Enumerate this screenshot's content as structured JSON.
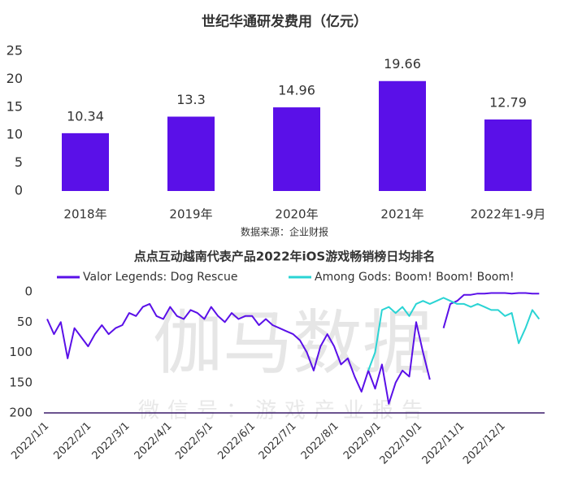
{
  "chart_data": [
    {
      "type": "bar",
      "title": "世纪华通研发费用（亿元）",
      "categories": [
        "2018年",
        "2019年",
        "2020年",
        "2021年",
        "2022年1-9月"
      ],
      "values": [
        10.34,
        13.3,
        14.96,
        19.66,
        12.79
      ],
      "color": "#5a10e8",
      "ylim": [
        0,
        25
      ],
      "yticks": [
        0,
        5,
        10,
        15,
        20,
        25
      ],
      "grid": false,
      "source": "数据来源：企业财报"
    },
    {
      "type": "line",
      "title": "点点互动越南代表产品2022年iOS游戏畅销榜日均排名",
      "x": [
        "2022/1/1",
        "2022/1/6",
        "2022/1/11",
        "2022/1/16",
        "2022/1/21",
        "2022/1/26",
        "2022/1/31",
        "2022/2/5",
        "2022/2/10",
        "2022/2/15",
        "2022/2/20",
        "2022/2/25",
        "2022/3/2",
        "2022/3/7",
        "2022/3/12",
        "2022/3/17",
        "2022/3/22",
        "2022/3/27",
        "2022/4/1",
        "2022/4/6",
        "2022/4/11",
        "2022/4/16",
        "2022/4/21",
        "2022/4/26",
        "2022/5/1",
        "2022/5/6",
        "2022/5/11",
        "2022/5/16",
        "2022/5/21",
        "2022/5/26",
        "2022/5/31",
        "2022/6/5",
        "2022/6/10",
        "2022/6/15",
        "2022/6/20",
        "2022/6/25",
        "2022/6/30",
        "2022/7/5",
        "2022/7/10",
        "2022/7/15",
        "2022/7/20",
        "2022/7/25",
        "2022/7/30",
        "2022/8/4",
        "2022/8/9",
        "2022/8/14",
        "2022/8/19",
        "2022/8/24",
        "2022/8/29",
        "2022/9/3",
        "2022/9/8",
        "2022/9/13",
        "2022/9/18",
        "2022/9/23",
        "2022/9/28",
        "2022/10/3",
        "2022/10/8",
        "2022/10/13",
        "2022/10/18",
        "2022/10/23",
        "2022/10/28",
        "2022/11/2",
        "2022/11/7",
        "2022/11/12",
        "2022/11/17",
        "2022/11/22",
        "2022/11/27",
        "2022/12/2",
        "2022/12/7",
        "2022/12/12",
        "2022/12/17",
        "2022/12/22",
        "2022/12/27"
      ],
      "series": [
        {
          "name": "Valor Legends: Dog Rescue",
          "color": "#5a10e8",
          "values": [
            45,
            70,
            50,
            110,
            60,
            75,
            90,
            70,
            55,
            70,
            60,
            55,
            35,
            40,
            25,
            20,
            40,
            45,
            25,
            40,
            45,
            30,
            35,
            45,
            25,
            40,
            50,
            35,
            45,
            40,
            40,
            55,
            45,
            55,
            60,
            65,
            70,
            80,
            100,
            130,
            90,
            70,
            90,
            120,
            110,
            140,
            165,
            130,
            160,
            120,
            185,
            150,
            130,
            140,
            50,
            100,
            145,
            null,
            60,
            20,
            15,
            5,
            5,
            3,
            3,
            2,
            2,
            2,
            3,
            2,
            2,
            3,
            3
          ]
        },
        {
          "name": "Among Gods: Boom! Boom! Boom!",
          "color": "#2ad4d4",
          "values": [
            null,
            null,
            null,
            null,
            null,
            null,
            null,
            null,
            null,
            null,
            null,
            null,
            null,
            null,
            null,
            null,
            null,
            null,
            null,
            null,
            null,
            null,
            null,
            null,
            null,
            null,
            null,
            null,
            null,
            null,
            null,
            null,
            null,
            null,
            null,
            null,
            null,
            null,
            null,
            null,
            null,
            null,
            null,
            null,
            null,
            null,
            null,
            130,
            100,
            30,
            25,
            35,
            25,
            40,
            20,
            15,
            20,
            15,
            10,
            15,
            20,
            20,
            25,
            20,
            25,
            30,
            30,
            40,
            35,
            85,
            60,
            30,
            45
          ]
        }
      ],
      "xlim": [
        "2022/1/1",
        "2022/12/31"
      ],
      "xticks": [
        "2022/1/1",
        "2022/2/1",
        "2022/3/1",
        "2022/4/1",
        "2022/5/1",
        "2022/6/1",
        "2022/7/1",
        "2022/8/1",
        "2022/9/1",
        "2022/10/1",
        "2022/11/1",
        "2022/12/1"
      ],
      "ylim": [
        0,
        200
      ],
      "yticks": [
        0,
        50,
        100,
        150,
        200
      ],
      "y_inverted": true,
      "legend": "top",
      "watermark": "伽马数据",
      "watermark_sub": "微信号：游戏产业报告"
    }
  ]
}
